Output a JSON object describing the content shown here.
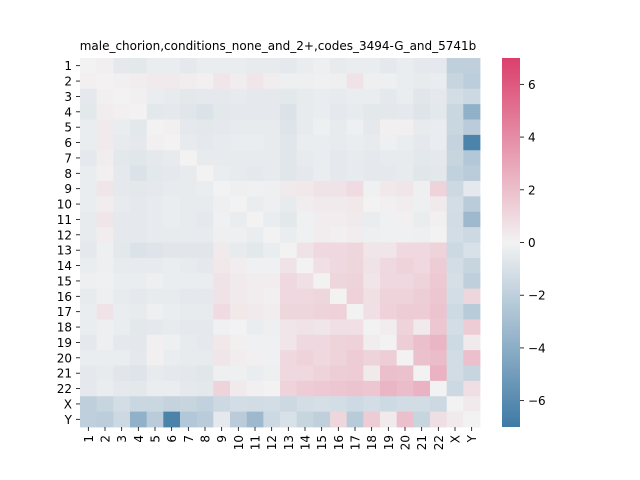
{
  "chart_data": {
    "type": "heatmap",
    "title": "male_chorion,conditions_none_and_2+,codes_3494-G_and_5741b",
    "categories": [
      "1",
      "2",
      "3",
      "4",
      "5",
      "6",
      "7",
      "8",
      "9",
      "10",
      "11",
      "12",
      "13",
      "14",
      "15",
      "16",
      "17",
      "18",
      "19",
      "20",
      "21",
      "22",
      "X",
      "Y"
    ],
    "colorbar": {
      "vmin": -7,
      "vmax": 7,
      "ticks": [
        -6,
        -4,
        -2,
        0,
        2,
        4,
        6
      ]
    },
    "colors": {
      "negative": "#3f7aa5",
      "neutral": "#f2f2f2",
      "positive": "#db3f6c"
    },
    "values": [
      [
        0,
        0.1,
        -0.5,
        -0.6,
        -0.3,
        -0.3,
        -0.5,
        -0.3,
        -0.3,
        -0.3,
        -0.4,
        -0.4,
        -0.5,
        -0.3,
        -0.2,
        -0.4,
        -0.3,
        -0.3,
        -0.5,
        -0.3,
        -0.5,
        -0.5,
        -2.0,
        -2.0
      ],
      [
        0.1,
        0,
        0.1,
        0.2,
        0.3,
        0.3,
        0.2,
        0.1,
        0.5,
        0.2,
        0.5,
        0.2,
        -0.2,
        -0.2,
        -0.1,
        -0.2,
        0.6,
        -0.2,
        -0.2,
        -0.3,
        -0.4,
        -0.3,
        -1.7,
        -2.1
      ],
      [
        -0.5,
        0.1,
        0,
        0.1,
        -0.3,
        -0.4,
        -0.6,
        -0.5,
        -0.5,
        -0.4,
        -0.5,
        -0.5,
        -0.6,
        -0.4,
        -0.3,
        -0.4,
        -0.3,
        -0.3,
        -0.5,
        -0.3,
        -0.7,
        -0.5,
        -1.2,
        -1.5
      ],
      [
        -0.6,
        0.2,
        0.1,
        0,
        -0.6,
        -0.5,
        -0.7,
        -0.9,
        -0.6,
        -0.5,
        -0.5,
        -0.5,
        -0.9,
        -0.4,
        -0.3,
        -0.5,
        -0.4,
        -0.6,
        -0.6,
        -0.5,
        -0.8,
        -0.6,
        -1.6,
        -3.8
      ],
      [
        -0.3,
        0.3,
        -0.3,
        -0.6,
        0,
        0.1,
        -0.5,
        -0.6,
        -0.5,
        -0.4,
        -0.4,
        -0.4,
        -0.8,
        -0.4,
        -0.2,
        -0.4,
        -0.2,
        -0.5,
        0.1,
        0.1,
        -0.4,
        -0.3,
        -1.6,
        -2.2
      ],
      [
        -0.3,
        0.3,
        -0.4,
        -0.5,
        0.1,
        0,
        -0.4,
        -0.5,
        -0.4,
        -0.3,
        -0.3,
        -0.4,
        -0.7,
        -0.3,
        -0.3,
        -0.4,
        -0.3,
        -0.4,
        -0.2,
        -0.3,
        -0.5,
        -0.3,
        -1.8,
        -6.5
      ],
      [
        -0.5,
        0.2,
        -0.6,
        -0.7,
        -0.5,
        -0.4,
        0,
        -0.4,
        -0.4,
        -0.4,
        -0.4,
        -0.4,
        -0.7,
        -0.4,
        -0.3,
        -0.5,
        -0.4,
        -0.5,
        -0.4,
        -0.4,
        -0.6,
        -0.5,
        -1.7,
        -2.5
      ],
      [
        -0.3,
        0.1,
        -0.5,
        -0.9,
        -0.6,
        -0.5,
        -0.4,
        0,
        -0.3,
        -0.4,
        -0.5,
        -0.4,
        -0.7,
        -0.5,
        -0.3,
        -0.5,
        -0.4,
        -0.5,
        -0.5,
        -0.4,
        -0.7,
        -0.6,
        -1.9,
        -2.2
      ],
      [
        -0.3,
        0.5,
        -0.5,
        -0.6,
        -0.5,
        -0.4,
        -0.4,
        -0.3,
        0,
        -0.2,
        -0.1,
        -0.2,
        0.3,
        0.4,
        0.6,
        0.6,
        0.9,
        -0.1,
        0.4,
        0.5,
        -0.2,
        1.2,
        -1.5,
        -0.5
      ],
      [
        -0.3,
        0.2,
        -0.4,
        -0.5,
        -0.4,
        -0.3,
        -0.4,
        -0.4,
        -0.2,
        0,
        -0.3,
        -0.2,
        -0.4,
        0.2,
        0.3,
        0.3,
        0.4,
        0.0,
        0.1,
        0.2,
        -0.2,
        0.3,
        -1.2,
        -2.2
      ],
      [
        -0.4,
        0.5,
        -0.5,
        -0.5,
        -0.4,
        -0.3,
        -0.4,
        -0.5,
        -0.1,
        -0.3,
        0,
        -0.3,
        -0.6,
        -0.1,
        0.2,
        0.2,
        0.3,
        -0.3,
        -0.1,
        0.1,
        -0.3,
        0.1,
        -1.3,
        -3.3
      ],
      [
        -0.4,
        0.2,
        -0.5,
        -0.5,
        -0.4,
        -0.4,
        -0.4,
        -0.4,
        -0.2,
        -0.2,
        -0.3,
        0,
        -0.3,
        -0.1,
        0.2,
        0.1,
        0.2,
        -0.2,
        -0.1,
        -0.1,
        -0.2,
        0.0,
        -1.2,
        -1.5
      ],
      [
        -0.5,
        -0.2,
        -0.6,
        -0.9,
        -0.8,
        -0.7,
        -0.7,
        -0.7,
        0.3,
        -0.4,
        -0.6,
        -0.3,
        0,
        0.6,
        1.0,
        1.0,
        1.1,
        0.5,
        0.5,
        1.0,
        1.0,
        1.2,
        -1.5,
        -1.0
      ],
      [
        -0.3,
        -0.2,
        -0.4,
        -0.4,
        -0.4,
        -0.3,
        -0.4,
        -0.5,
        0.4,
        0.2,
        -0.1,
        -0.1,
        0.6,
        0,
        0.7,
        1.0,
        1.1,
        0.6,
        1.0,
        1.2,
        1.0,
        1.5,
        -1.2,
        -1.7
      ],
      [
        -0.2,
        -0.1,
        -0.3,
        -0.3,
        -0.2,
        -0.3,
        -0.3,
        -0.3,
        0.6,
        0.3,
        0.2,
        0.2,
        1.0,
        0.7,
        0,
        1.1,
        1.2,
        0.5,
        1.0,
        1.0,
        1.2,
        1.6,
        -1.1,
        -2.0
      ],
      [
        -0.4,
        -0.2,
        -0.4,
        -0.5,
        -0.4,
        -0.4,
        -0.5,
        -0.5,
        0.6,
        0.3,
        0.2,
        0.1,
        1.0,
        1.0,
        1.1,
        0,
        1.3,
        0.7,
        1.2,
        1.2,
        1.4,
        1.7,
        -1.2,
        1.1
      ],
      [
        -0.3,
        0.6,
        -0.3,
        -0.4,
        -0.2,
        -0.3,
        -0.4,
        -0.4,
        0.9,
        0.4,
        0.3,
        0.2,
        1.1,
        1.1,
        1.2,
        1.3,
        0,
        0.7,
        1.3,
        1.5,
        1.5,
        1.8,
        -1.4,
        -2.3
      ],
      [
        -0.3,
        -0.2,
        -0.3,
        -0.6,
        -0.5,
        -0.4,
        -0.5,
        -0.5,
        -0.1,
        0.0,
        -0.3,
        -0.2,
        0.5,
        0.6,
        0.5,
        0.7,
        0.7,
        0,
        0.2,
        1.2,
        0.3,
        1.7,
        -1.2,
        1.5
      ],
      [
        -0.5,
        -0.2,
        -0.5,
        -0.6,
        0.1,
        -0.2,
        -0.4,
        -0.5,
        0.4,
        0.1,
        -0.1,
        -0.1,
        0.5,
        1.0,
        1.0,
        1.2,
        1.3,
        0.2,
        0,
        1.4,
        2.0,
        2.4,
        -1.4,
        0.3
      ],
      [
        -0.3,
        -0.3,
        -0.3,
        -0.5,
        0.1,
        -0.3,
        -0.4,
        -0.4,
        0.5,
        0.2,
        0.1,
        -0.1,
        1.0,
        1.2,
        1.0,
        1.2,
        1.5,
        1.2,
        1.4,
        0,
        1.9,
        2.1,
        -1.3,
        2.0
      ],
      [
        -0.5,
        -0.4,
        -0.7,
        -0.8,
        -0.4,
        -0.5,
        -0.6,
        -0.7,
        -0.2,
        -0.2,
        -0.3,
        -0.2,
        1.0,
        1.0,
        1.2,
        1.4,
        1.5,
        0.3,
        2.0,
        1.9,
        0,
        2.5,
        -1.3,
        -1.7
      ],
      [
        -0.5,
        -0.3,
        -0.5,
        -0.6,
        -0.3,
        -0.3,
        -0.5,
        -0.6,
        1.2,
        0.3,
        0.1,
        0.0,
        1.2,
        1.5,
        1.6,
        1.7,
        1.8,
        1.7,
        2.4,
        2.1,
        2.5,
        0,
        -1.5,
        0.8
      ],
      [
        -2.0,
        -1.7,
        -1.2,
        -1.6,
        -1.6,
        -1.8,
        -1.7,
        -1.9,
        -1.5,
        -1.2,
        -1.3,
        -1.2,
        -1.5,
        -1.2,
        -1.1,
        -1.2,
        -1.4,
        -1.2,
        -1.4,
        -1.3,
        -1.3,
        -1.5,
        0,
        0.3
      ],
      [
        -2.0,
        -2.1,
        -1.5,
        -3.8,
        -2.2,
        -6.5,
        -2.5,
        -2.2,
        -0.5,
        -2.2,
        -3.3,
        -1.5,
        -1.0,
        -1.7,
        -2.0,
        1.1,
        -2.3,
        1.5,
        0.3,
        2.0,
        -1.7,
        0.8,
        0.3,
        0
      ]
    ]
  }
}
